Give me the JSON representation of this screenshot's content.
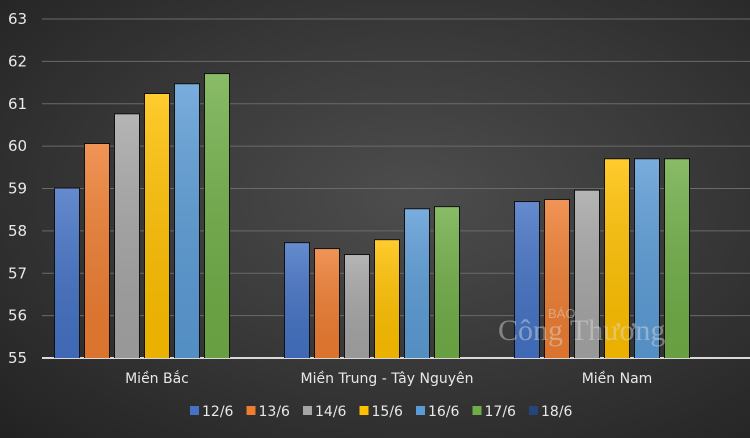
{
  "chart_data": {
    "type": "bar",
    "title": "",
    "xlabel": "",
    "ylabel": "",
    "ylim": [
      55,
      63
    ],
    "yticks": [
      "55",
      "56",
      "57",
      "58",
      "59",
      "60",
      "61",
      "62",
      "63"
    ],
    "grid": true,
    "legend_position": "bottom",
    "categories": [
      "Miền Bắc",
      "Miền Trung - Tây Nguyên",
      "Miền Nam"
    ],
    "series": [
      {
        "name": "12/6",
        "color": "#4472c4",
        "values": [
          59.0,
          57.71,
          58.68
        ]
      },
      {
        "name": "13/6",
        "color": "#ed7d31",
        "values": [
          60.05,
          57.57,
          58.73
        ]
      },
      {
        "name": "14/6",
        "color": "#a5a5a5",
        "values": [
          60.75,
          57.43,
          58.95
        ]
      },
      {
        "name": "15/6",
        "color": "#ffc000",
        "values": [
          61.23,
          57.78,
          59.69
        ]
      },
      {
        "name": "16/6",
        "color": "#5b9bd5",
        "values": [
          61.46,
          58.51,
          59.69
        ]
      },
      {
        "name": "17/6",
        "color": "#70ad47",
        "values": [
          61.7,
          58.56,
          59.69
        ]
      },
      {
        "name": "18/6",
        "color": "#264478",
        "values": [
          null,
          null,
          null
        ]
      }
    ]
  },
  "watermark": {
    "small": "BÁO",
    "big": "Công Thương"
  }
}
